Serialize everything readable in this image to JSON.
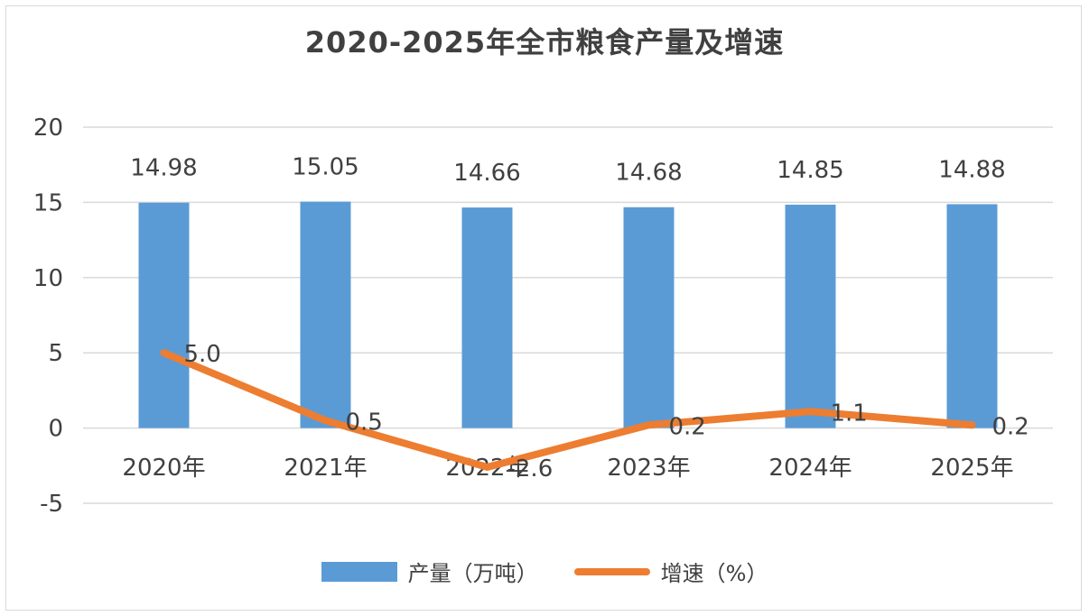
{
  "colors": {
    "bar": "#5b9bd5",
    "line": "#ed7d31",
    "grid": "#d9d9d9",
    "text": "#404040"
  },
  "chart_data": {
    "type": "bar",
    "title": "2020-2025年全市粮食产量及增速",
    "categories": [
      "2020年",
      "2021年",
      "2022年",
      "2023年",
      "2024年",
      "2025年"
    ],
    "series": [
      {
        "name": "产量（万吨）",
        "type": "bar",
        "values": [
          14.98,
          15.05,
          14.66,
          14.68,
          14.85,
          14.88
        ],
        "labels": [
          "14.98",
          "15.05",
          "14.66",
          "14.68",
          "14.85",
          "14.88"
        ]
      },
      {
        "name": "增速（%）",
        "type": "line",
        "values": [
          5.0,
          0.5,
          -2.6,
          0.2,
          1.1,
          0.2
        ],
        "labels": [
          "5.0",
          "0.5",
          "-2.6",
          "0.2",
          "1.1",
          "0.2"
        ]
      }
    ],
    "yticks": [
      "20",
      "15",
      "10",
      "5",
      "0",
      "-5"
    ],
    "ylim": [
      -5,
      20
    ],
    "grid": true,
    "legend": "bottom"
  }
}
